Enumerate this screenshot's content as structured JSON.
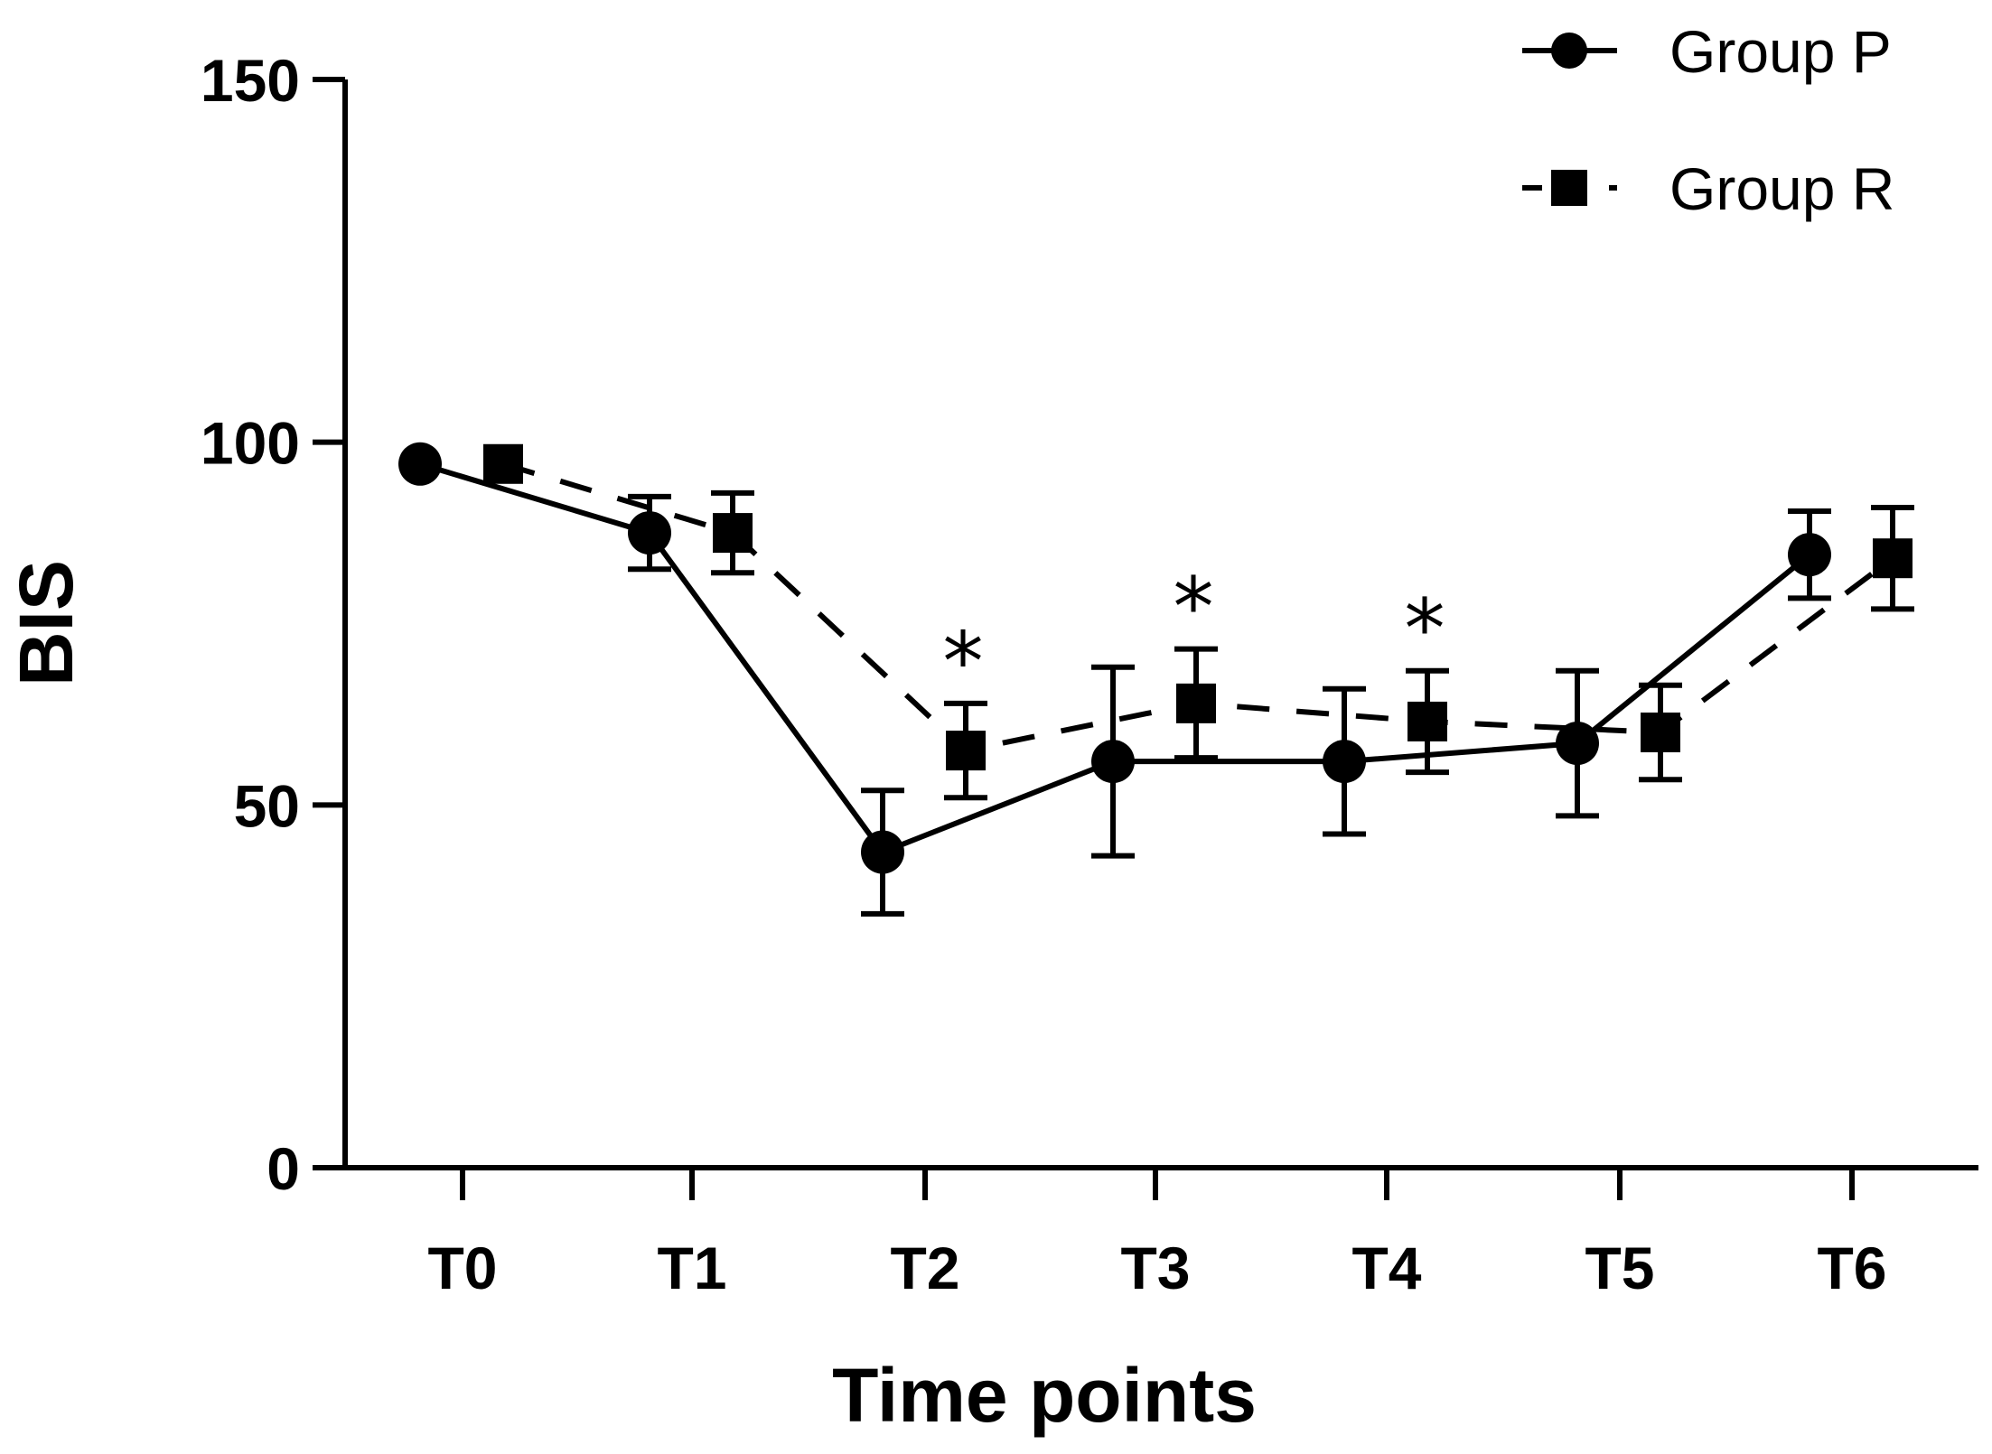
{
  "chart_data": {
    "type": "line",
    "title": "",
    "xlabel": "Time points",
    "ylabel": "BIS",
    "ylim": [
      0,
      150
    ],
    "yticks": [
      0,
      50,
      100,
      150
    ],
    "categories": [
      "T0",
      "T1",
      "T2",
      "T3",
      "T4",
      "T5",
      "T6"
    ],
    "legend_position": "top-right",
    "grid": false,
    "series": [
      {
        "name": "Group P",
        "marker": "circle",
        "line_style": "solid",
        "values": [
          97,
          87.5,
          43.5,
          56,
          56,
          58.5,
          84.5
        ],
        "error": [
          0,
          5,
          8.5,
          13,
          10,
          10,
          6
        ]
      },
      {
        "name": "Group R",
        "marker": "square",
        "line_style": "dashed",
        "values": [
          97,
          87.5,
          57.5,
          64,
          61.5,
          60,
          84
        ],
        "error": [
          0,
          5.5,
          6.5,
          7.5,
          7,
          6.5,
          7
        ]
      }
    ],
    "annotations": [
      {
        "category": "T2",
        "text": "*"
      },
      {
        "category": "T3",
        "text": "*"
      },
      {
        "category": "T4",
        "text": "*"
      }
    ]
  }
}
